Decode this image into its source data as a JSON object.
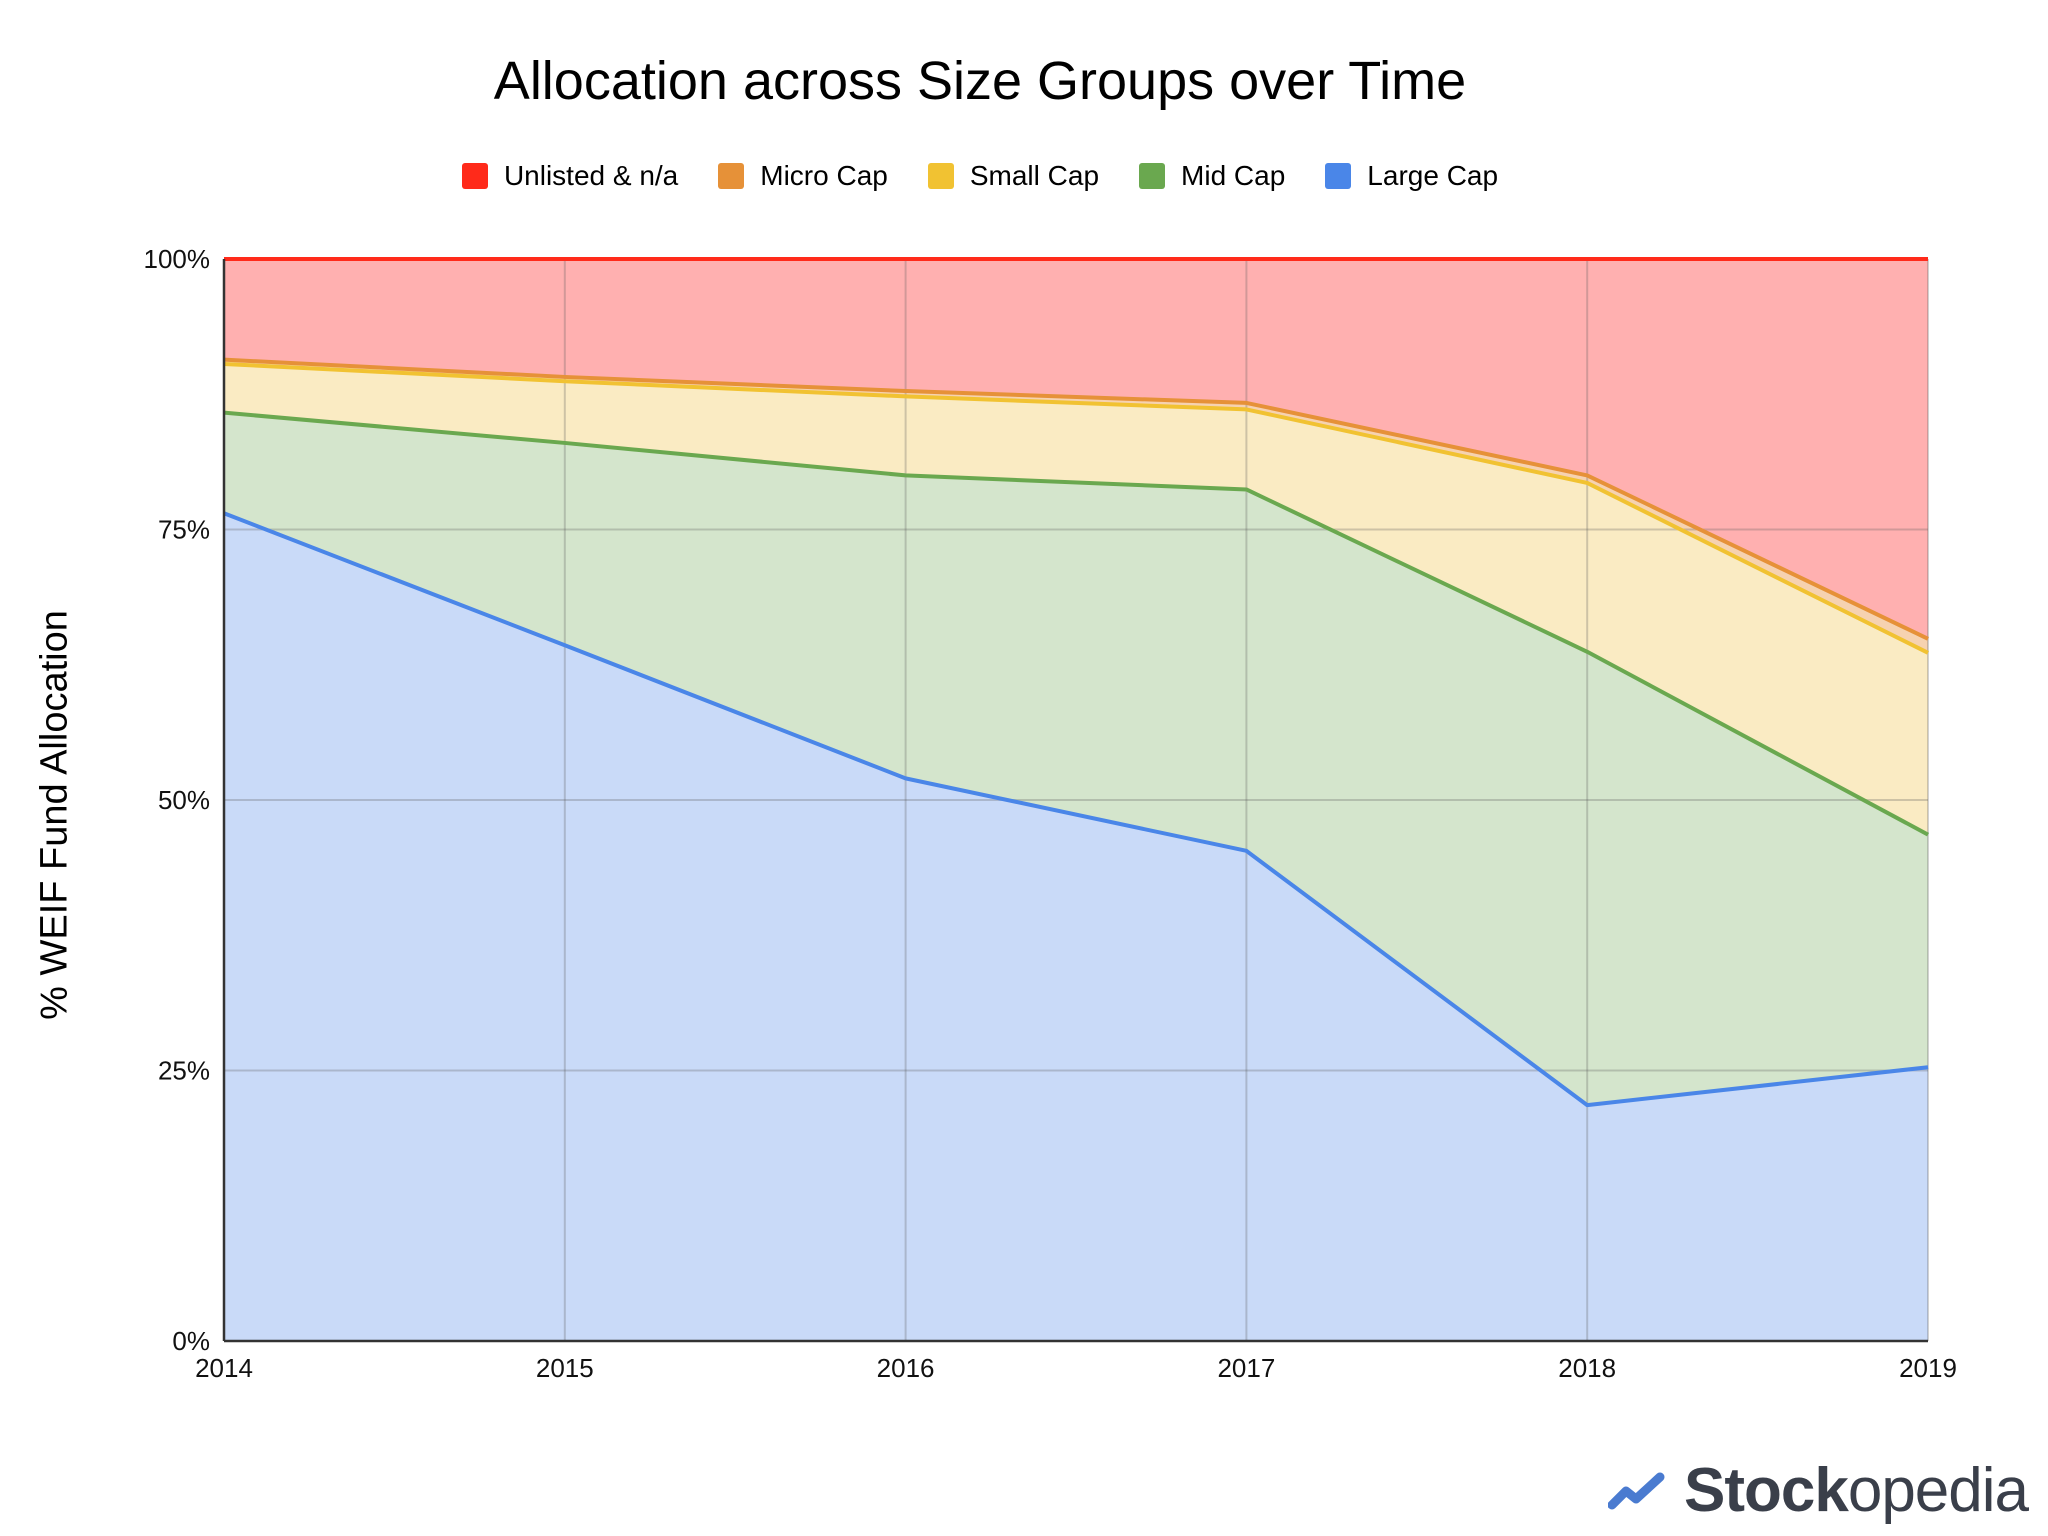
{
  "chart_data": {
    "type": "area",
    "stacked": true,
    "title": "Allocation across Size Groups over Time",
    "xlabel": "",
    "ylabel": "% WEIF Fund Allocation",
    "x": [
      "2014",
      "2015",
      "2016",
      "2017",
      "2018",
      "2019"
    ],
    "ylim": [
      0,
      100
    ],
    "yticks": [
      "0%",
      "25%",
      "50%",
      "75%",
      "100%"
    ],
    "ytick_values": [
      0,
      25,
      50,
      75,
      100
    ],
    "grid": true,
    "legend_position": "top-center",
    "series": [
      {
        "name": "Large Cap",
        "color": "#4a86e8",
        "fill": "#c9daf8",
        "values": [
          76.5,
          64.3,
          52.0,
          45.3,
          21.8,
          25.3
        ]
      },
      {
        "name": "Mid Cap",
        "color": "#6aa84f",
        "fill": "#d4e5cc",
        "values": [
          9.3,
          18.7,
          28.0,
          33.4,
          41.9,
          21.5
        ]
      },
      {
        "name": "Small Cap",
        "color": "#f1c232",
        "fill": "#faebc3",
        "values": [
          4.5,
          5.7,
          7.3,
          7.4,
          15.6,
          16.8
        ]
      },
      {
        "name": "Micro Cap",
        "color": "#e69138",
        "fill": "#f6d2b0",
        "values": [
          0.4,
          0.4,
          0.5,
          0.6,
          0.7,
          1.3
        ]
      },
      {
        "name": "Unlisted & n/a",
        "color": "#ff2a1a",
        "fill": "#ffb0b0",
        "values": [
          9.3,
          10.9,
          12.2,
          13.3,
          20.0,
          35.1
        ]
      }
    ],
    "legend_order": [
      "Unlisted & n/a",
      "Micro Cap",
      "Small Cap",
      "Mid Cap",
      "Large Cap"
    ]
  },
  "logo": {
    "text_bold": "Stock",
    "text_regular": "opedia",
    "icon": "trend-check-icon"
  }
}
